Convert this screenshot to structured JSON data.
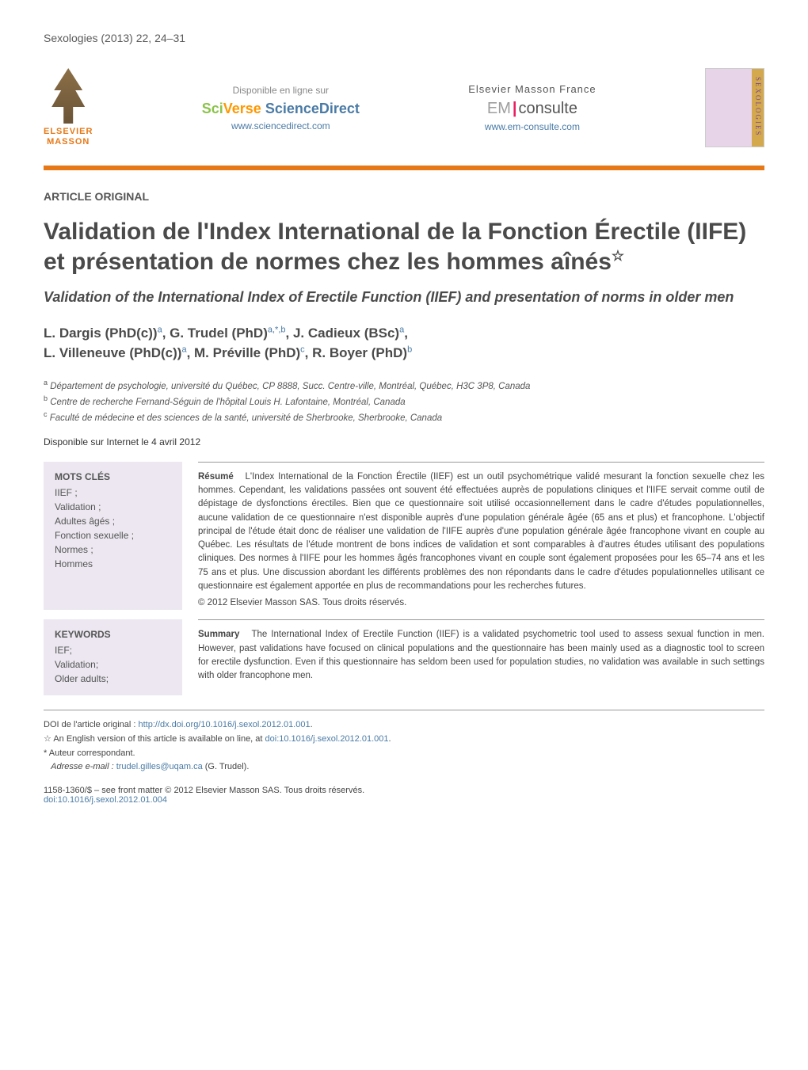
{
  "journal_header": "Sexologies (2013) 22, 24–31",
  "banner": {
    "elsevier": {
      "line1": "ELSEVIER",
      "line2": "MASSON"
    },
    "sciencedirect": {
      "disponible": "Disponible en ligne sur",
      "brand_sci": "Sci",
      "brand_verse": "Verse ",
      "brand_sd": "ScienceDirect",
      "url": "www.sciencedirect.com"
    },
    "emconsulte": {
      "publisher": "Elsevier Masson France",
      "em": "EM",
      "consulte": "consulte",
      "url": "www.em-consulte.com"
    },
    "cover_spine": "SEXOLOGIES"
  },
  "article_type": "ARTICLE ORIGINAL",
  "title_fr": "Validation de l'Index International de la Fonction Érectile (IIFE) et présentation de normes chez les hommes aînés",
  "title_en": "Validation of the International Index of Erectile Function (IIEF) and presentation of norms in older men",
  "authors_line1": "L. Dargis (PhD(c))",
  "authors_1_sup": "a",
  "authors_2": ", G. Trudel (PhD)",
  "authors_2_sup": "a,*,b",
  "authors_3": ", J. Cadieux (BSc)",
  "authors_3_sup": "a",
  "authors_4": "L. Villeneuve (PhD(c))",
  "authors_4_sup": "a",
  "authors_5": ", M. Préville (PhD)",
  "authors_5_sup": "c",
  "authors_6": ", R. Boyer (PhD)",
  "authors_6_sup": "b",
  "affiliations": {
    "a": "Département de psychologie, université du Québec, CP 8888, Succ. Centre-ville, Montréal, Québec, H3C 3P8, Canada",
    "b": "Centre de recherche Fernand-Séguin de l'hôpital Louis H. Lafontaine, Montréal, Canada",
    "c": "Faculté de médecine et des sciences de la santé, université de Sherbrooke, Sherbrooke, Canada"
  },
  "online_date": "Disponible sur Internet le 4 avril 2012",
  "mots_cles": {
    "title": "MOTS CLÉS",
    "items": "IIEF ;\nValidation ;\nAdultes âgés ;\nFonction sexuelle ;\nNormes ;\nHommes"
  },
  "resume": {
    "lead": "Résumé",
    "text": "L'Index International de la Fonction Érectile (IIEF) est un outil psychométrique validé mesurant la fonction sexuelle chez les hommes. Cependant, les validations passées ont souvent été effectuées auprès de populations cliniques et l'IIFE servait comme outil de dépistage de dysfonctions érectiles. Bien que ce questionnaire soit utilisé occasionnellement dans le cadre d'études populationnelles, aucune validation de ce questionnaire n'est disponible auprès d'une population générale âgée (65 ans et plus) et francophone. L'objectif principal de l'étude était donc de réaliser une validation de l'IIFE auprès d'une population générale âgée francophone vivant en couple au Québec. Les résultats de l'étude montrent de bons indices de validation et sont comparables à d'autres études utilisant des populations cliniques. Des normes à l'IIFE pour les hommes âgés francophones vivant en couple sont également proposées pour les 65–74 ans et les 75 ans et plus. Une discussion abordant les différents problèmes des non répondants dans le cadre d'études populationnelles utilisant ce questionnaire est également apportée en plus de recommandations pour les recherches futures.",
    "copyright": "© 2012 Elsevier Masson SAS. Tous droits réservés."
  },
  "keywords": {
    "title": "KEYWORDS",
    "items": "IEF;\nValidation;\nOlder adults;"
  },
  "summary": {
    "lead": "Summary",
    "text": "The International Index of Erectile Function (IIEF) is a validated psychometric tool used to assess sexual function in men. However, past validations have focused on clinical populations and the questionnaire has been mainly used as a diagnostic tool to screen for erectile dysfunction. Even if this questionnaire has seldom been used for population studies, no validation was available in such settings with older francophone men."
  },
  "footnotes": {
    "doi_original_label": "DOI de l'article original : ",
    "doi_original_url": "http://dx.doi.org/10.1016/j.sexol.2012.01.001",
    "star_note_prefix": "An English version of this article is available on line, at ",
    "star_note_doi": "doi:10.1016/j.sexol.2012.01.001",
    "corresponding": "Auteur correspondant.",
    "email_label": "Adresse e-mail : ",
    "email": "trudel.gilles@uqam.ca",
    "email_name": " (G. Trudel)."
  },
  "footer": {
    "issn_line": "1158-1360/$ – see front matter © 2012 Elsevier Masson SAS. Tous droits réservés.",
    "doi": "doi:10.1016/j.sexol.2012.01.004"
  },
  "colors": {
    "orange": "#e67817",
    "link_blue": "#4a7ba6",
    "keyword_bg": "#ece7f0"
  }
}
